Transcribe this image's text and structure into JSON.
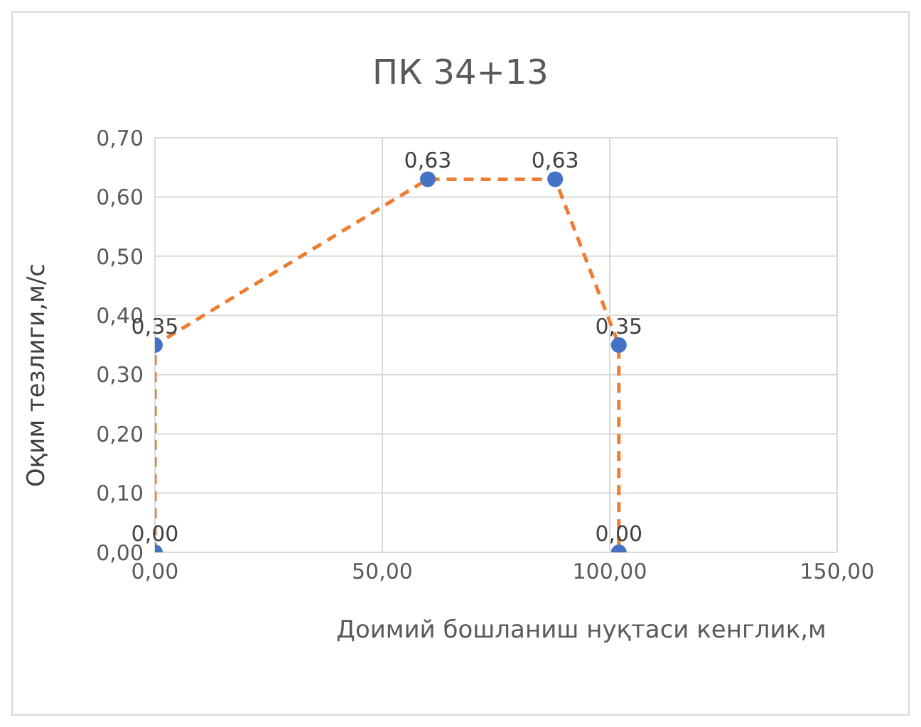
{
  "chart_data": {
    "type": "line",
    "title": "ПК 34+13",
    "xlabel": "Доимий бошланиш нуқтаси кенглик,м",
    "ylabel": "Оқим тезлиги,м/с",
    "x": [
      0,
      0,
      60,
      88,
      102,
      102
    ],
    "series": [
      {
        "color": "#ed7d31",
        "colors": [
          "#4472c4",
          "#4472c4",
          "#4472c4",
          "#4472c4",
          "#4472c4",
          "#4472c4"
        ],
        "values": [
          0,
          0.35,
          0.63,
          0.63,
          0.35,
          0
        ],
        "value_labels": [
          "0,00",
          "0,35",
          "0,63",
          "0,63",
          "0,35",
          "0,00"
        ]
      }
    ],
    "xlim": [
      0,
      150
    ],
    "xticks": [
      {
        "value": 0,
        "label": "0,00"
      },
      {
        "value": 50,
        "label": "50,00"
      },
      {
        "value": 100,
        "label": "100,00"
      },
      {
        "value": 150,
        "label": "150,00"
      }
    ],
    "ylim": [
      0,
      0.7
    ],
    "yticks": [
      {
        "value": 0,
        "label": "0,00"
      },
      {
        "value": 0.1,
        "label": "0,10"
      },
      {
        "value": 0.2,
        "label": "0,20"
      },
      {
        "value": 0.3,
        "label": "0,30"
      },
      {
        "value": 0.4,
        "label": "0,40"
      },
      {
        "value": 0.5,
        "label": "0,50"
      },
      {
        "value": 0.6,
        "label": "0,60"
      },
      {
        "value": 0.7,
        "label": "0,70"
      }
    ],
    "grid": true,
    "legend": false,
    "marker": "circle",
    "line_style": "dashed"
  }
}
